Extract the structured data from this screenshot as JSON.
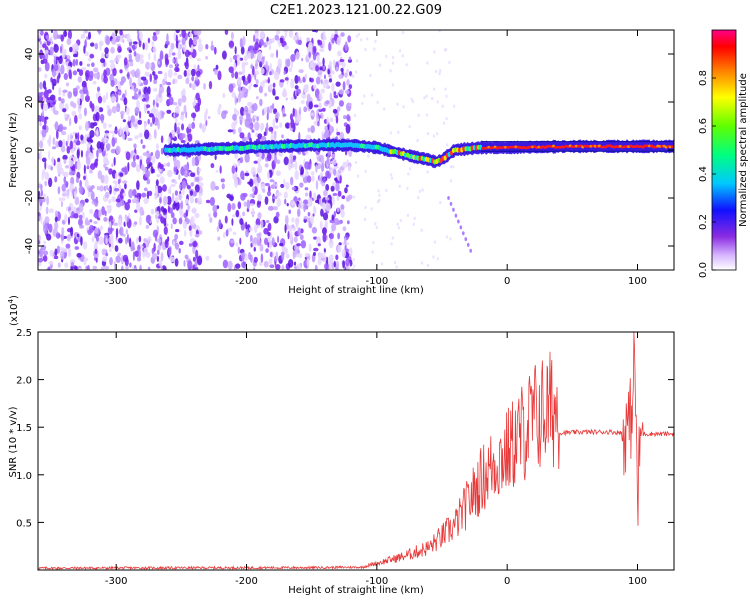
{
  "title": "C2E1.2023.121.00.22.G09",
  "chart_data": [
    {
      "type": "heatmap",
      "xlabel": "Height of straight line (km)",
      "ylabel": "Frequency (Hz)",
      "xlim": [
        -360,
        128
      ],
      "ylim": [
        -50,
        50
      ],
      "xticks": [
        -300,
        -200,
        -100,
        0,
        100
      ],
      "yticks": [
        -40,
        -20,
        0,
        20,
        40
      ],
      "colorbar": {
        "label": "Normalized spectral amplitude",
        "range": [
          0,
          1
        ],
        "ticks": [
          0.0,
          0.2,
          0.4,
          0.6,
          0.8
        ],
        "tick_labels": [
          "0.0",
          "0.2",
          "0.4",
          "0.6",
          "0.8"
        ],
        "colormap": "rainbow"
      },
      "ridge": {
        "x": [
          -250,
          -200,
          -150,
          -120,
          -100,
          -85,
          -70,
          -60,
          -55,
          -50,
          -45,
          -40,
          -30,
          -20,
          0,
          50,
          100,
          128
        ],
        "y": [
          0,
          1,
          2,
          2,
          1,
          -1,
          -3,
          -4,
          -5,
          -4,
          -2,
          0,
          0.5,
          1,
          1,
          1.5,
          1.5,
          1.5
        ]
      },
      "noise_region_x": [
        -360,
        -120
      ],
      "secondary_trace": {
        "x": [
          -45,
          -28
        ],
        "y": [
          -20,
          -42
        ]
      }
    },
    {
      "type": "line",
      "xlabel": "Height of straight line (km)",
      "ylabel": "SNR (10 * v/v)",
      "y_multiplier_label": "(x10",
      "y_multiplier_exp": "4",
      "y_multiplier_close": ")",
      "xlim": [
        -360,
        128
      ],
      "ylim": [
        0,
        25000
      ],
      "xticks": [
        -300,
        -200,
        -100,
        0,
        100
      ],
      "yticks": [
        5000,
        10000,
        15000,
        20000,
        25000
      ],
      "ytick_labels": [
        "0.5",
        "1.0",
        "1.5",
        "2.0",
        "2.5"
      ],
      "color": "#e83a3a",
      "series_envelope": {
        "x": [
          -360,
          -150,
          -110,
          -100,
          -80,
          -60,
          -40,
          -30,
          -20,
          -10,
          0,
          10,
          20,
          30,
          40,
          60,
          80,
          90,
          95,
          98,
          100,
          102,
          105,
          128
        ],
        "y": [
          200,
          250,
          300,
          600,
          1200,
          2000,
          4000,
          6000,
          8000,
          9500,
          10500,
          12000,
          13500,
          14200,
          14400,
          14500,
          14500,
          14400,
          16000,
          23000,
          6000,
          14000,
          14300,
          14300
        ]
      }
    }
  ]
}
